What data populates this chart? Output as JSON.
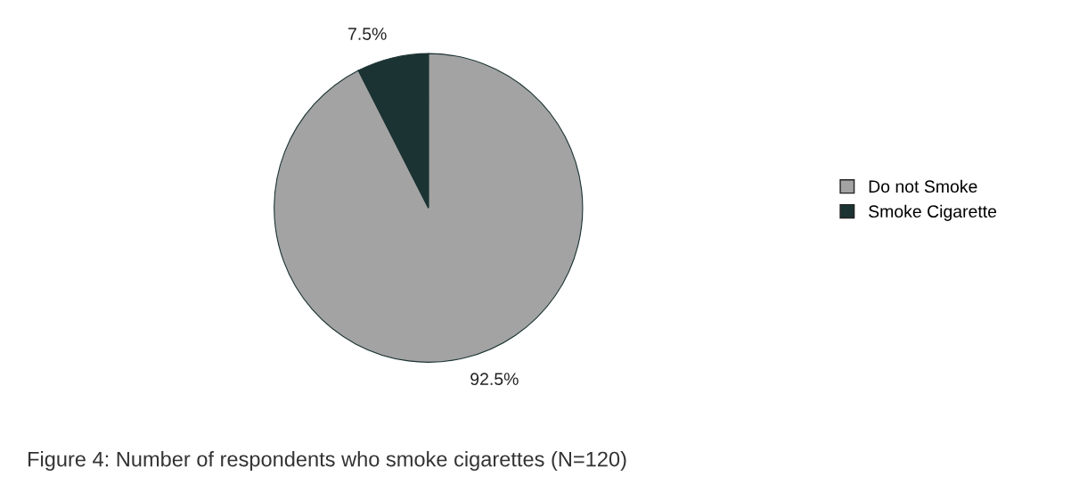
{
  "chart_data": {
    "type": "pie",
    "title": "Figure 4: Number of respondents who smoke cigarettes (N=120)",
    "categories": [
      "Do not Smoke",
      "Smoke Cigarette"
    ],
    "values": [
      92.5,
      7.5
    ],
    "value_labels": [
      "92.5%",
      "7.5%"
    ],
    "colors": [
      "#a3a3a3",
      "#1c3333"
    ],
    "legend": "right"
  }
}
